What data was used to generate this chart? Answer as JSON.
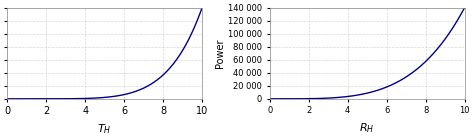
{
  "left": {
    "xlabel": "$T_H$",
    "ylabel": "",
    "xlim": [
      0,
      10
    ],
    "ylim": [
      0,
      140000
    ],
    "yticks": [
      0,
      20000,
      40000,
      60000,
      80000,
      100000,
      120000,
      140000
    ],
    "xticks": [
      0,
      2,
      4,
      6,
      8,
      10
    ],
    "color": "#00008B",
    "power": 5
  },
  "right": {
    "xlabel": "$R_H$",
    "ylabel": "Power",
    "xlim": [
      0,
      10
    ],
    "ylim": [
      0,
      140000
    ],
    "yticks": [
      0,
      20000,
      40000,
      60000,
      80000,
      100000,
      120000,
      140000
    ],
    "xticks": [
      0,
      2,
      4,
      6,
      8,
      10
    ],
    "color": "#00008B",
    "power": 4
  },
  "background": "#ffffff",
  "grid_color": "#bbbbbb",
  "grid_style": "--",
  "grid_alpha": 0.6,
  "fig_width": 4.74,
  "fig_height": 1.4,
  "dpi": 100
}
